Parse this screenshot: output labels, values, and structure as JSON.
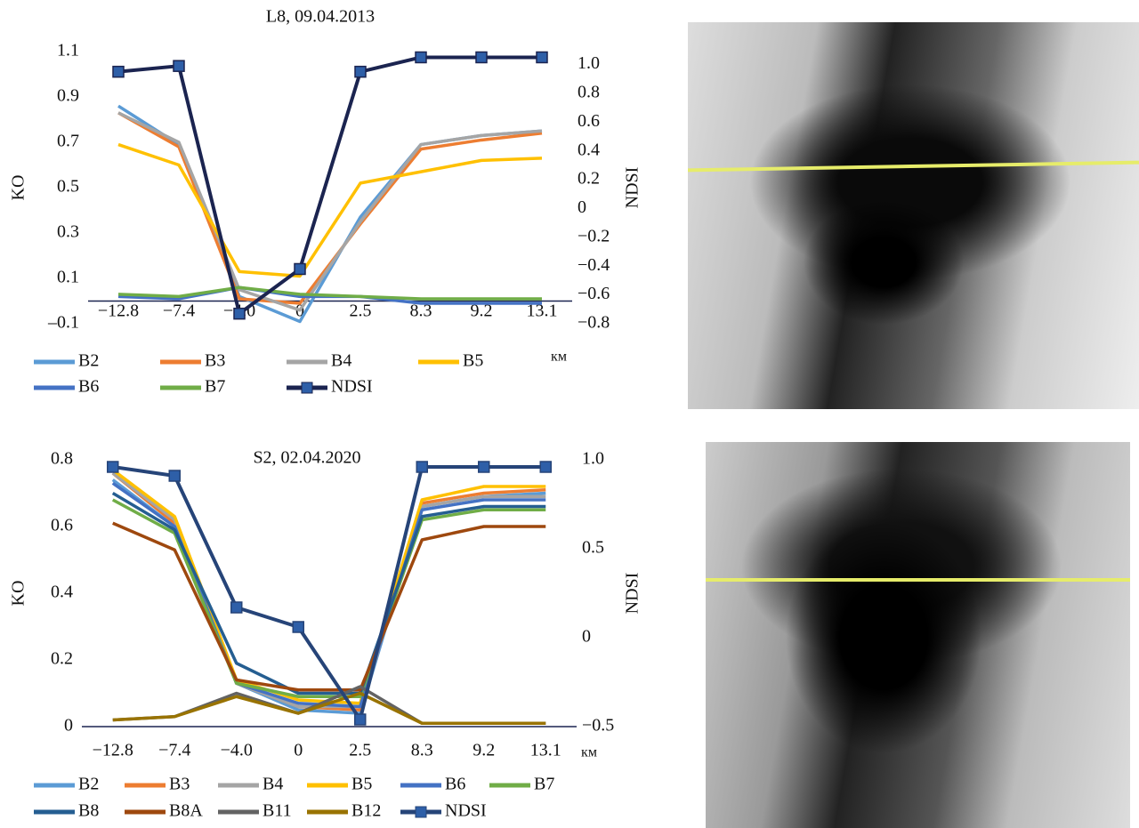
{
  "chart_data": [
    {
      "type": "line",
      "title": "L8, 09.04.2013",
      "y_label": "KO",
      "y2_label": "NDSI",
      "x_label": "км",
      "categories": [
        "−12.8",
        "−7.4",
        "−4.0",
        "0",
        "2.5",
        "8.3",
        "9.2",
        "13.1"
      ],
      "ylim": [
        -0.1,
        1.1
      ],
      "yticks": [
        {
          "value": -0.1,
          "label": "–0.1"
        },
        0.1,
        0.3,
        0.5,
        0.7,
        0.9,
        1.1
      ],
      "y2lim": [
        -0.8,
        1.09
      ],
      "y2ticks": [
        {
          "value": -0.8,
          "label": "−0.8"
        },
        {
          "value": -0.6,
          "label": "−0.6"
        },
        {
          "value": -0.4,
          "label": "−0.4"
        },
        {
          "value": -0.2,
          "label": "−0.2"
        },
        0,
        0.2,
        0.4,
        0.6,
        0.8,
        {
          "value": 1,
          "label": "1.0"
        }
      ],
      "series": [
        {
          "name": "B2",
          "color": "#5b9bd5",
          "values": [
            0.86,
            0.69,
            0.02,
            -0.09,
            0.37,
            0.69,
            0.73,
            0.75
          ]
        },
        {
          "name": "B3",
          "color": "#ed7d31",
          "values": [
            0.83,
            0.68,
            0.01,
            -0.01,
            0.34,
            0.67,
            0.71,
            0.74
          ]
        },
        {
          "name": "B4",
          "color": "#a5a5a5",
          "values": [
            0.83,
            0.7,
            0.05,
            -0.04,
            0.35,
            0.69,
            0.73,
            0.75
          ]
        },
        {
          "name": "B5",
          "color": "#ffc000",
          "values": [
            0.69,
            0.6,
            0.13,
            0.11,
            0.52,
            0.57,
            0.62,
            0.63
          ]
        },
        {
          "name": "B6",
          "color": "#4472c4",
          "values": [
            0.02,
            0.01,
            0.06,
            0.02,
            0.02,
            -0.01,
            -0.01,
            -0.01
          ]
        },
        {
          "name": "B7",
          "color": "#70ad47",
          "values": [
            0.03,
            0.02,
            0.06,
            0.03,
            0.02,
            0.01,
            0.01,
            0.01
          ]
        },
        {
          "name": "NDSI",
          "color": "#1b2450",
          "axis": "y2",
          "marker": "square",
          "values": [
            0.95,
            0.99,
            -0.73,
            -0.42,
            0.95,
            1.05,
            1.05,
            1.05
          ]
        }
      ]
    },
    {
      "type": "line",
      "title": "S2, 02.04.2020",
      "y_label": "KO",
      "y2_label": "NDSI",
      "x_label": "км",
      "categories": [
        "−12.8",
        "−7.4",
        "−4.0",
        "0",
        "2.5",
        "8.3",
        "9.2",
        "13.1"
      ],
      "ylim": [
        0,
        0.8
      ],
      "yticks": [
        0,
        0.2,
        0.4,
        0.6,
        0.8
      ],
      "y2lim": [
        -0.5,
        1
      ],
      "y2ticks": [
        {
          "value": -0.5,
          "label": "−0.5"
        },
        0,
        0.5,
        {
          "value": 1,
          "label": "1.0"
        }
      ],
      "series": [
        {
          "name": "B2",
          "color": "#5b9bd5",
          "values": [
            0.74,
            0.6,
            0.13,
            0.05,
            0.04,
            0.66,
            0.69,
            0.7
          ]
        },
        {
          "name": "B3",
          "color": "#ed7d31",
          "values": [
            0.76,
            0.61,
            0.13,
            0.06,
            0.05,
            0.67,
            0.7,
            0.71
          ]
        },
        {
          "name": "B4",
          "color": "#a5a5a5",
          "values": [
            0.76,
            0.62,
            0.13,
            0.06,
            0.06,
            0.66,
            0.69,
            0.69
          ]
        },
        {
          "name": "B5",
          "color": "#ffc000",
          "values": [
            0.77,
            0.63,
            0.14,
            0.08,
            0.07,
            0.68,
            0.72,
            0.72
          ]
        },
        {
          "name": "B6",
          "color": "#4472c4",
          "values": [
            0.73,
            0.6,
            0.13,
            0.07,
            0.06,
            0.65,
            0.68,
            0.68
          ]
        },
        {
          "name": "B7",
          "color": "#70ad47",
          "values": [
            0.68,
            0.58,
            0.13,
            0.09,
            0.09,
            0.62,
            0.65,
            0.65
          ]
        },
        {
          "name": "B8",
          "color": "#255e91",
          "values": [
            0.7,
            0.59,
            0.19,
            0.1,
            0.1,
            0.63,
            0.66,
            0.66
          ]
        },
        {
          "name": "B8A",
          "color": "#9e480e",
          "values": [
            0.61,
            0.53,
            0.14,
            0.11,
            0.11,
            0.56,
            0.6,
            0.6
          ]
        },
        {
          "name": "B11",
          "color": "#636363",
          "values": [
            0.02,
            0.03,
            0.1,
            0.04,
            0.12,
            0.01,
            0.01,
            0.01
          ]
        },
        {
          "name": "B12",
          "color": "#997300",
          "values": [
            0.02,
            0.03,
            0.09,
            0.04,
            0.1,
            0.01,
            0.01,
            0.01
          ]
        },
        {
          "name": "NDSI",
          "color": "#264478",
          "axis": "y2",
          "marker": "square",
          "values": [
            0.96,
            0.91,
            0.17,
            0.06,
            -0.46,
            0.96,
            0.96,
            0.96
          ]
        }
      ]
    }
  ]
}
